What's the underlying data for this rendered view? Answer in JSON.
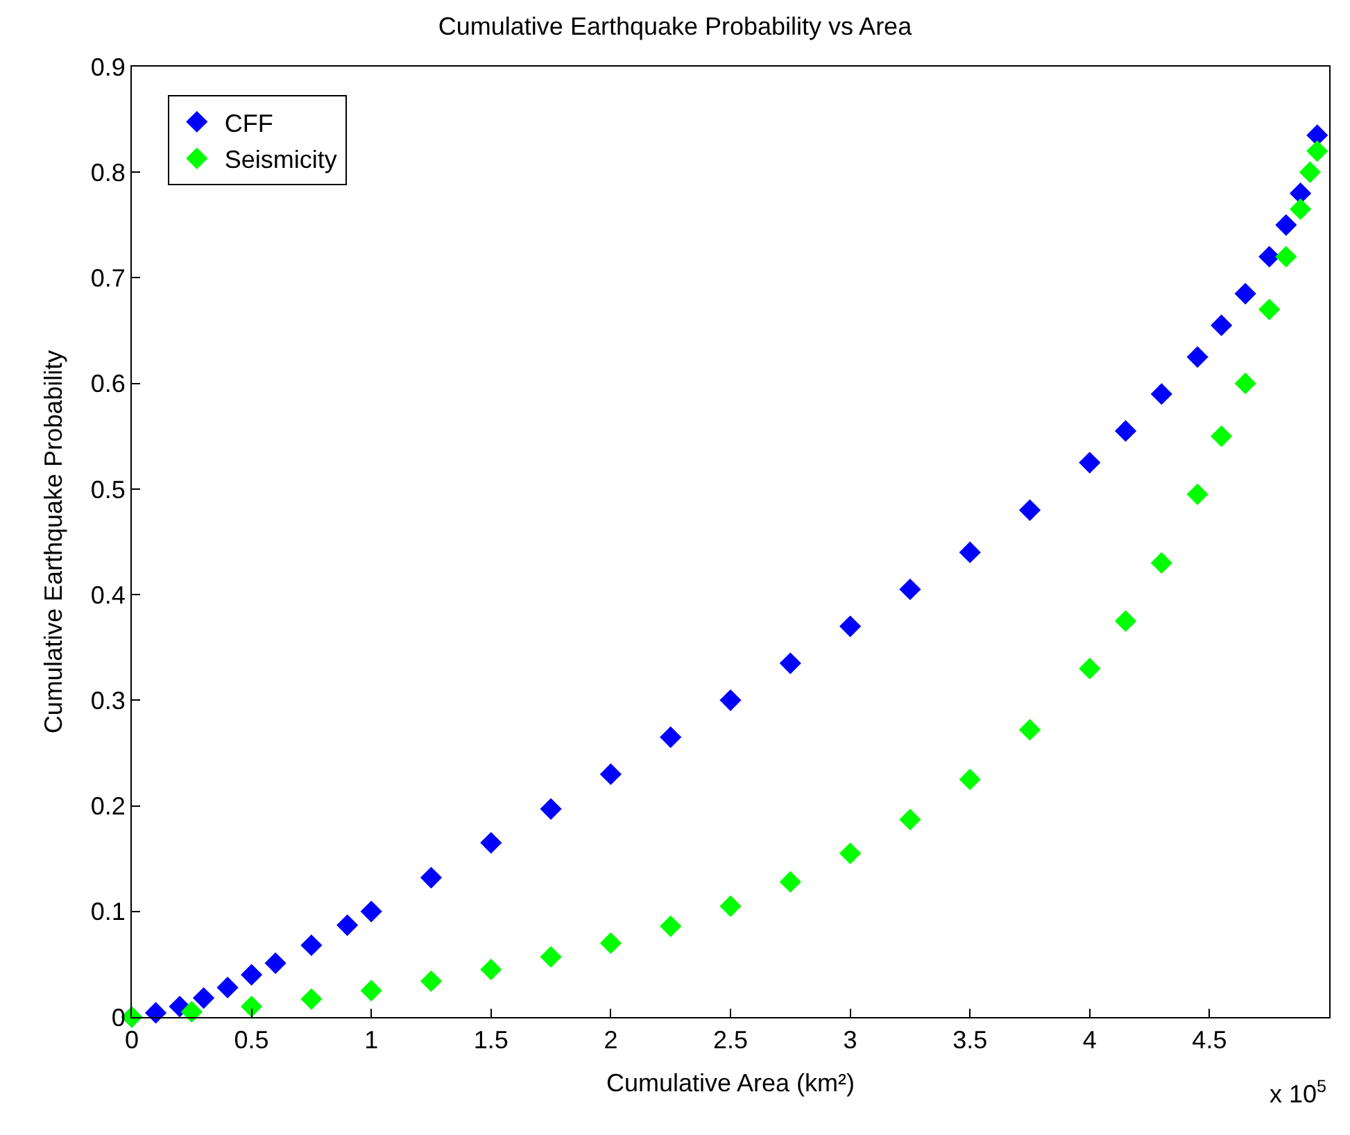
{
  "chart_data": {
    "type": "scatter",
    "title": "Cumulative Earthquake Probability vs Area",
    "xlabel": "Cumulative Area (km²)",
    "ylabel": "Cumulative Earthquake Probability",
    "annotations": [
      "x 10$^{5}$"
    ],
    "series": [
      {
        "name": "CFF",
        "color": "#0000ff",
        "x": [
          0,
          0.1,
          0.2,
          0.3,
          0.4,
          0.5,
          0.6,
          0.75,
          0.9,
          1,
          1.25,
          1.5,
          1.75,
          2,
          2.25,
          2.5,
          2.75,
          3,
          3.25,
          3.5,
          3.75,
          4,
          4.15,
          4.3,
          4.45,
          4.55,
          4.65,
          4.75,
          4.82,
          4.88,
          4.95
        ],
        "values": [
          0,
          0.004,
          0.01,
          0.018,
          0.028,
          0.04,
          0.051,
          0.068,
          0.087,
          0.1,
          0.132,
          0.165,
          0.197,
          0.23,
          0.265,
          0.3,
          0.335,
          0.37,
          0.405,
          0.44,
          0.48,
          0.525,
          0.555,
          0.59,
          0.625,
          0.655,
          0.685,
          0.72,
          0.75,
          0.78,
          0.835
        ]
      },
      {
        "name": "Seismicity",
        "color": "#00ff00",
        "x": [
          0,
          0.25,
          0.5,
          0.75,
          1,
          1.25,
          1.5,
          1.75,
          2,
          2.25,
          2.5,
          2.75,
          3,
          3.25,
          3.5,
          3.75,
          4,
          4.15,
          4.3,
          4.45,
          4.55,
          4.65,
          4.75,
          4.82,
          4.88,
          4.92,
          4.95
        ],
        "values": [
          0,
          0.005,
          0.01,
          0.017,
          0.025,
          0.034,
          0.045,
          0.057,
          0.07,
          0.086,
          0.105,
          0.128,
          0.155,
          0.187,
          0.225,
          0.272,
          0.33,
          0.375,
          0.43,
          0.495,
          0.55,
          0.6,
          0.67,
          0.72,
          0.765,
          0.8,
          0.82
        ]
      }
    ],
    "marker": "diamond",
    "xlim": [
      0,
      5
    ],
    "xticks": [
      0,
      0.5,
      1,
      1.5,
      2,
      2.5,
      3,
      3.5,
      4,
      4.5
    ],
    "ylim": [
      0,
      0.9
    ],
    "yticks": [
      0,
      0.1,
      0.2,
      0.3,
      0.4,
      0.5,
      0.6,
      0.7,
      0.8,
      0.9
    ],
    "legend": "top left"
  }
}
